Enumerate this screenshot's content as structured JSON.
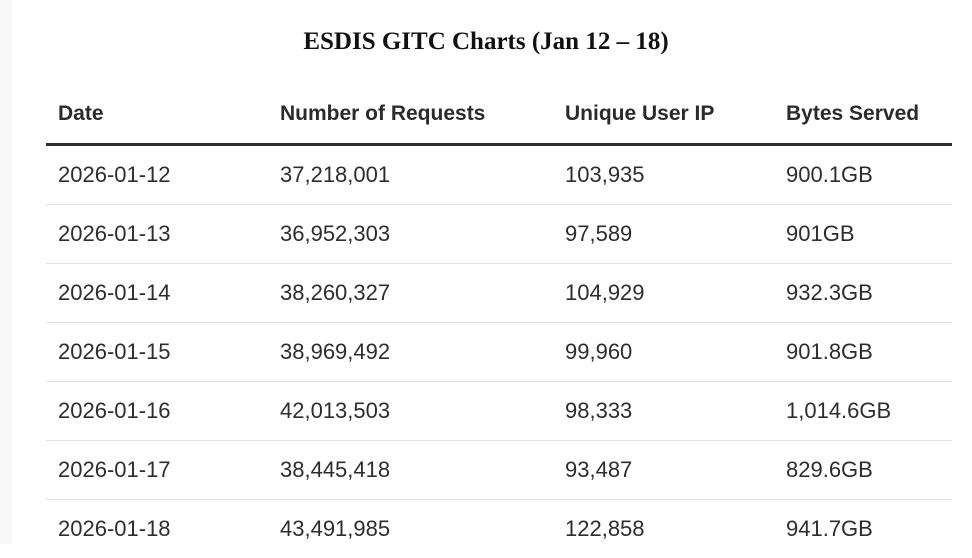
{
  "title": "ESDIS GITC Charts (Jan 12 – 18)",
  "table": {
    "headers": [
      "Date",
      "Number of Requests",
      "Unique User IP",
      "Bytes Served"
    ],
    "rows": [
      [
        "2026-01-12",
        "37,218,001",
        "103,935",
        "900.1GB"
      ],
      [
        "2026-01-13",
        "36,952,303",
        "97,589",
        "901GB"
      ],
      [
        "2026-01-14",
        "38,260,327",
        "104,929",
        "932.3GB"
      ],
      [
        "2026-01-15",
        "38,969,492",
        "99,960",
        "901.8GB"
      ],
      [
        "2026-01-16",
        "42,013,503",
        "98,333",
        "1,014.6GB"
      ],
      [
        "2026-01-17",
        "38,445,418",
        "93,487",
        "829.6GB"
      ],
      [
        "2026-01-18",
        "43,491,985",
        "122,858",
        "941.7GB"
      ]
    ]
  }
}
